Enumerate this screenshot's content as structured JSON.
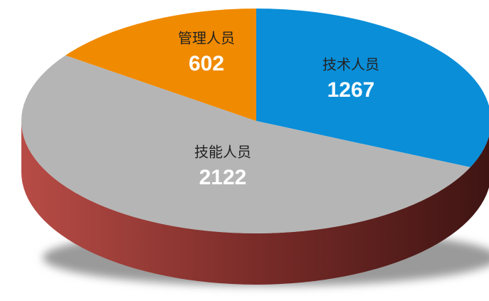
{
  "chart_data": {
    "type": "pie",
    "categories": [
      "技术人员",
      "技能人员",
      "管理人员"
    ],
    "values": [
      1267,
      2122,
      602
    ],
    "colors": [
      "#0a8ed8",
      "#b5b5b5",
      "#f08a00"
    ]
  }
}
